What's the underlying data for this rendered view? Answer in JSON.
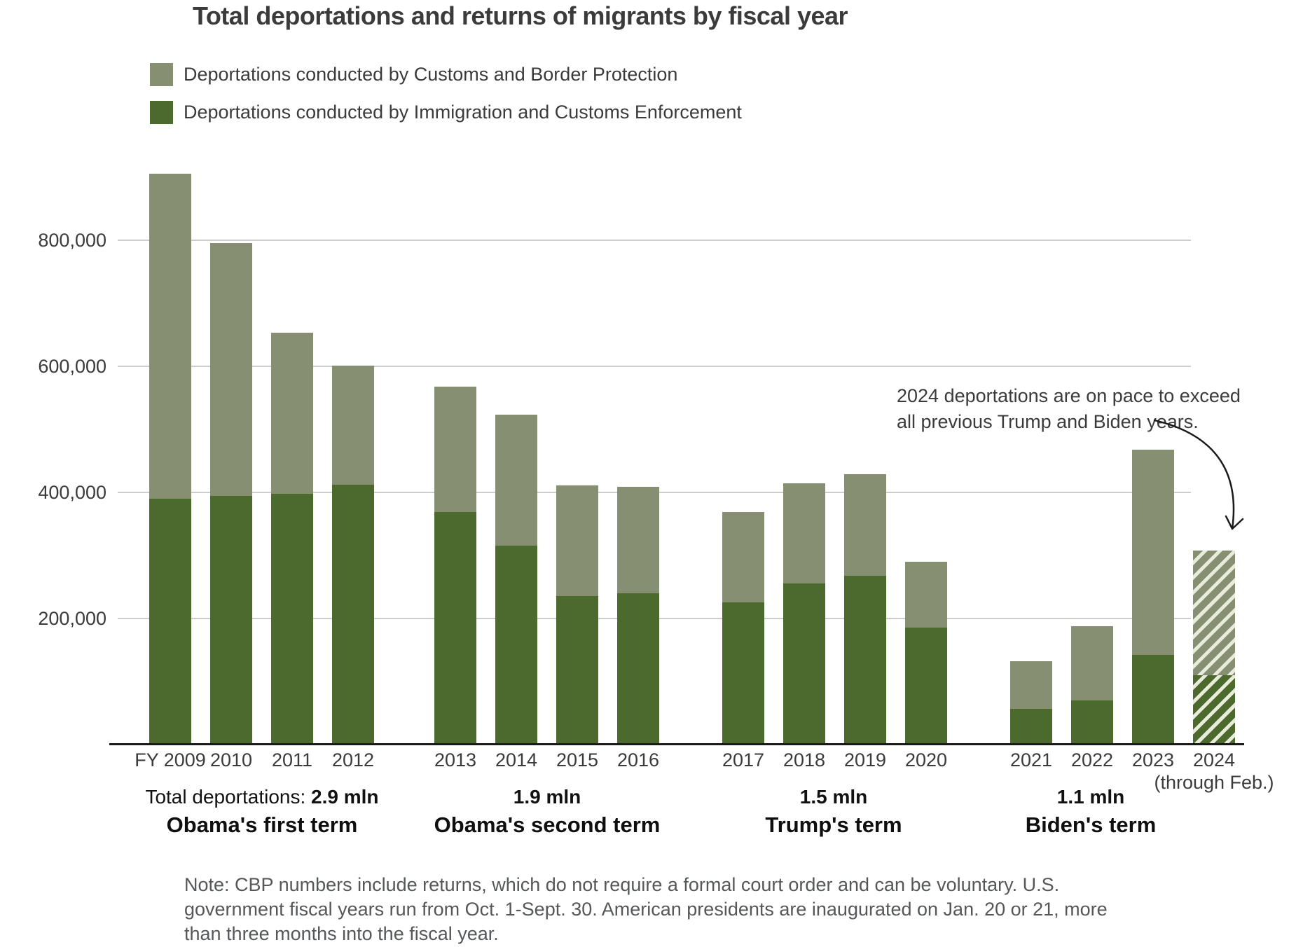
{
  "title": "Total deportations and returns of migrants by fiscal year",
  "legend": {
    "items": [
      {
        "label": "Deportations conducted by Customs and Border Protection",
        "color": "#868f72"
      },
      {
        "label": "Deportations conducted by Immigration and Customs Enforcement",
        "color": "#4d6a2e"
      }
    ]
  },
  "annotation": {
    "lines": [
      "2024 deportations are on pace to exceed",
      "all previous Trump and Biden years."
    ]
  },
  "note": {
    "lines": [
      "Note: CBP numbers include returns, which do not require a formal court order and can be voluntary. U.S.",
      "government fiscal years run from Oct. 1-Sept. 30. American presidents are inaugurated on Jan. 20 or 21, more",
      "than three months into the fiscal year."
    ]
  },
  "colors": {
    "cbp": "#868f72",
    "ice": "#4d6a2e",
    "hatch_stripe": "#e9ecdb",
    "gridline": "#cdcdcd",
    "axis": "#1a1a1a",
    "arrow": "#1a1a1a"
  },
  "chart_data": {
    "type": "bar",
    "subtype": "stacked",
    "grid": true,
    "ylim": [
      0,
      920000
    ],
    "y_ticks": [
      {
        "value": 800000,
        "label": "800,000"
      },
      {
        "value": 600000,
        "label": "600,000"
      },
      {
        "value": 400000,
        "label": "400,000"
      },
      {
        "value": 200000,
        "label": "200,000"
      }
    ],
    "series": [
      {
        "key": "cbp",
        "name": "Deportations conducted by Customs and Border Protection",
        "color": "#868f72"
      },
      {
        "key": "ice",
        "name": "Deportations conducted by Immigration and Customs Enforcement",
        "color": "#4d6a2e"
      }
    ],
    "groups": [
      {
        "term": "Obama's first term",
        "total_prefix": "Total deportations: ",
        "total_value": "2.9 mln",
        "bars": [
          {
            "year": "FY 2009",
            "ice": 390000,
            "cbp": 515000
          },
          {
            "year": "2010",
            "ice": 394000,
            "cbp": 401000
          },
          {
            "year": "2011",
            "ice": 398000,
            "cbp": 255000
          },
          {
            "year": "2012",
            "ice": 412000,
            "cbp": 189000
          }
        ]
      },
      {
        "term": "Obama's second term",
        "total_prefix": "",
        "total_value": "1.9 mln",
        "bars": [
          {
            "year": "2013",
            "ice": 369000,
            "cbp": 199000
          },
          {
            "year": "2014",
            "ice": 316000,
            "cbp": 208000
          },
          {
            "year": "2015",
            "ice": 236000,
            "cbp": 175000
          },
          {
            "year": "2016",
            "ice": 240000,
            "cbp": 169000
          }
        ]
      },
      {
        "term": "Trump's term",
        "total_prefix": "",
        "total_value": "1.5 mln",
        "bars": [
          {
            "year": "2017",
            "ice": 226000,
            "cbp": 143000
          },
          {
            "year": "2018",
            "ice": 256000,
            "cbp": 159000
          },
          {
            "year": "2019",
            "ice": 268000,
            "cbp": 161000
          },
          {
            "year": "2020",
            "ice": 186000,
            "cbp": 104000
          }
        ]
      },
      {
        "term": "Biden's term",
        "total_prefix": "",
        "total_value": "1.1 mln",
        "bars": [
          {
            "year": "2021",
            "ice": 57000,
            "cbp": 76000
          },
          {
            "year": "2022",
            "ice": 70000,
            "cbp": 118000
          },
          {
            "year": "2023",
            "ice": 142000,
            "cbp": 326000
          },
          {
            "year": "2024",
            "sublabel": "(through Feb.)",
            "hatched": true,
            "ice": 110000,
            "cbp": 198000
          }
        ]
      }
    ]
  }
}
